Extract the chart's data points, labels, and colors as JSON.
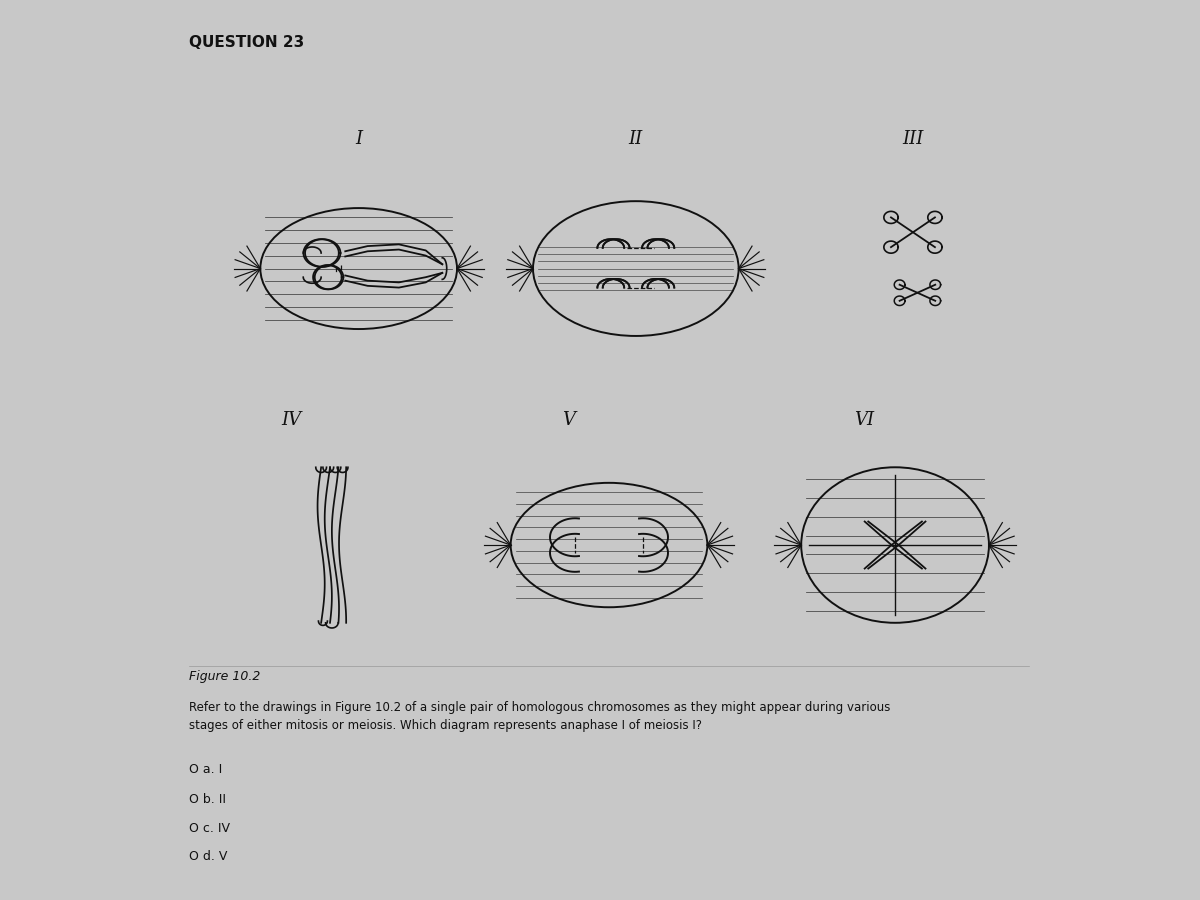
{
  "title": "QUESTION 23",
  "figure_label": "Figure 10.2",
  "question_text": "Refer to the drawings in Figure 10.2 of a single pair of homologous chromosomes as they might appear during various\nstages of either mitosis or meiosis. Which diagram represents anaphase I of meiosis I?",
  "answers": [
    "O a. I",
    "O b. II",
    "O c. IV",
    "O d. V"
  ],
  "bg_color": "#c8c8c8",
  "panel_color": "#e8e8e6",
  "text_color": "#111111",
  "line_color": "#111111"
}
